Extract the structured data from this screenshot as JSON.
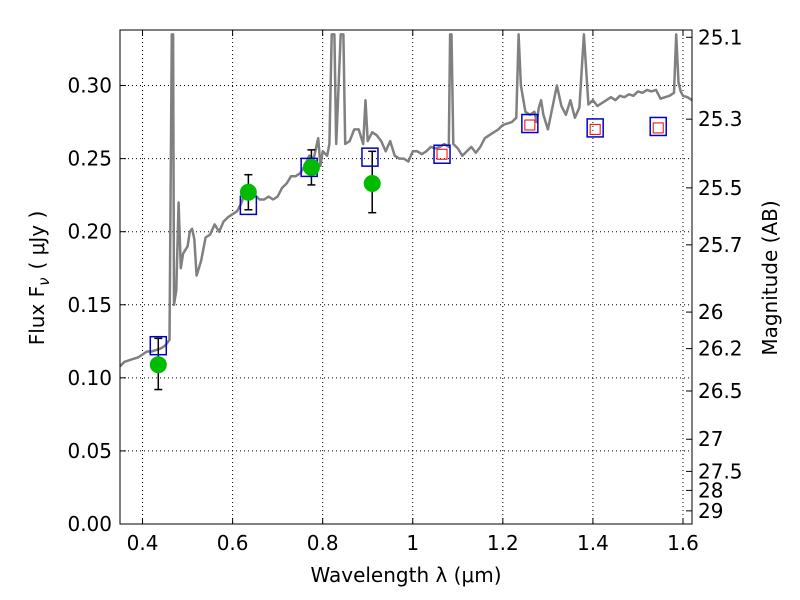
{
  "chart_data": {
    "type": "scatter",
    "xlabel": "Wavelength  λ (μm)",
    "ylabel": "Flux  F",
    "ylabel_subscript": "ν",
    "ylabel_unit": "( μJy )",
    "y2label": "Magnitude (AB)",
    "xlim": [
      0.35,
      1.62
    ],
    "ylim": [
      0.0,
      0.338
    ],
    "grid": true,
    "x_ticks": [
      0.4,
      0.6,
      0.8,
      1.0,
      1.2,
      1.4,
      1.6
    ],
    "x_tick_labels": [
      "0.4",
      "0.6",
      "0.8",
      "1",
      "1.2",
      "1.4",
      "1.6"
    ],
    "y_ticks": [
      0.0,
      0.05,
      0.1,
      0.15,
      0.2,
      0.25,
      0.3
    ],
    "y_tick_labels": [
      "0.00",
      "0.05",
      "0.10",
      "0.15",
      "0.20",
      "0.25",
      "0.30"
    ],
    "mag_ticks": [
      {
        "label": "25.1",
        "flux": 0.333
      },
      {
        "label": "25.3",
        "flux": 0.277
      },
      {
        "label": "25.5",
        "flux": 0.23
      },
      {
        "label": "25.7",
        "flux": 0.191
      },
      {
        "label": "26",
        "flux": 0.145
      },
      {
        "label": "26.2",
        "flux": 0.12
      },
      {
        "label": "26.5",
        "flux": 0.091
      },
      {
        "label": "27",
        "flux": 0.058
      },
      {
        "label": "27.5",
        "flux": 0.036
      },
      {
        "label": "28",
        "flux": 0.023
      },
      {
        "label": "29",
        "flux": 0.009
      }
    ],
    "series": [
      {
        "kind": "line",
        "color": "#808080",
        "points": [
          [
            0.35,
            0.108
          ],
          [
            0.36,
            0.111
          ],
          [
            0.37,
            0.112
          ],
          [
            0.38,
            0.113
          ],
          [
            0.39,
            0.114
          ],
          [
            0.4,
            0.116
          ],
          [
            0.41,
            0.118
          ],
          [
            0.42,
            0.118
          ],
          [
            0.43,
            0.119
          ],
          [
            0.44,
            0.12
          ],
          [
            0.45,
            0.122
          ],
          [
            0.455,
            0.124
          ],
          [
            0.46,
            0.126
          ],
          [
            0.465,
            0.335
          ],
          [
            0.468,
            0.335
          ],
          [
            0.47,
            0.15
          ],
          [
            0.475,
            0.16
          ],
          [
            0.48,
            0.22
          ],
          [
            0.485,
            0.175
          ],
          [
            0.49,
            0.185
          ],
          [
            0.5,
            0.19
          ],
          [
            0.505,
            0.2
          ],
          [
            0.51,
            0.202
          ],
          [
            0.515,
            0.195
          ],
          [
            0.52,
            0.17
          ],
          [
            0.53,
            0.18
          ],
          [
            0.54,
            0.196
          ],
          [
            0.55,
            0.198
          ],
          [
            0.56,
            0.205
          ],
          [
            0.57,
            0.2
          ],
          [
            0.58,
            0.207
          ],
          [
            0.59,
            0.21
          ],
          [
            0.6,
            0.212
          ],
          [
            0.61,
            0.214
          ],
          [
            0.62,
            0.22
          ],
          [
            0.63,
            0.23
          ],
          [
            0.64,
            0.232
          ],
          [
            0.65,
            0.225
          ],
          [
            0.66,
            0.222
          ],
          [
            0.67,
            0.222
          ],
          [
            0.68,
            0.224
          ],
          [
            0.69,
            0.222
          ],
          [
            0.7,
            0.224
          ],
          [
            0.71,
            0.23
          ],
          [
            0.72,
            0.233
          ],
          [
            0.73,
            0.238
          ],
          [
            0.74,
            0.238
          ],
          [
            0.75,
            0.24
          ],
          [
            0.76,
            0.245
          ],
          [
            0.77,
            0.252
          ],
          [
            0.78,
            0.25
          ],
          [
            0.79,
            0.264
          ],
          [
            0.795,
            0.245
          ],
          [
            0.8,
            0.255
          ],
          [
            0.81,
            0.252
          ],
          [
            0.815,
            0.26
          ],
          [
            0.82,
            0.335
          ],
          [
            0.826,
            0.335
          ],
          [
            0.83,
            0.26
          ],
          [
            0.84,
            0.335
          ],
          [
            0.846,
            0.335
          ],
          [
            0.85,
            0.26
          ],
          [
            0.86,
            0.262
          ],
          [
            0.87,
            0.27
          ],
          [
            0.88,
            0.27
          ],
          [
            0.89,
            0.26
          ],
          [
            0.895,
            0.29
          ],
          [
            0.9,
            0.262
          ],
          [
            0.91,
            0.268
          ],
          [
            0.92,
            0.266
          ],
          [
            0.93,
            0.262
          ],
          [
            0.94,
            0.255
          ],
          [
            0.95,
            0.262
          ],
          [
            0.96,
            0.252
          ],
          [
            0.97,
            0.25
          ],
          [
            0.98,
            0.25
          ],
          [
            0.99,
            0.248
          ],
          [
            1.0,
            0.255
          ],
          [
            1.01,
            0.255
          ],
          [
            1.02,
            0.253
          ],
          [
            1.03,
            0.255
          ],
          [
            1.04,
            0.258
          ],
          [
            1.05,
            0.257
          ],
          [
            1.06,
            0.258
          ],
          [
            1.07,
            0.26
          ],
          [
            1.08,
            0.258
          ],
          [
            1.083,
            0.335
          ],
          [
            1.086,
            0.335
          ],
          [
            1.09,
            0.26
          ],
          [
            1.1,
            0.257
          ],
          [
            1.11,
            0.252
          ],
          [
            1.12,
            0.255
          ],
          [
            1.13,
            0.258
          ],
          [
            1.14,
            0.254
          ],
          [
            1.15,
            0.258
          ],
          [
            1.16,
            0.264
          ],
          [
            1.17,
            0.266
          ],
          [
            1.18,
            0.268
          ],
          [
            1.19,
            0.27
          ],
          [
            1.2,
            0.273
          ],
          [
            1.21,
            0.274
          ],
          [
            1.22,
            0.275
          ],
          [
            1.23,
            0.278
          ],
          [
            1.235,
            0.335
          ],
          [
            1.24,
            0.3
          ],
          [
            1.25,
            0.282
          ],
          [
            1.26,
            0.28
          ],
          [
            1.27,
            0.282
          ],
          [
            1.275,
            0.275
          ],
          [
            1.28,
            0.285
          ],
          [
            1.285,
            0.29
          ],
          [
            1.29,
            0.28
          ],
          [
            1.3,
            0.27
          ],
          [
            1.31,
            0.285
          ],
          [
            1.32,
            0.3
          ],
          [
            1.33,
            0.286
          ],
          [
            1.34,
            0.28
          ],
          [
            1.35,
            0.29
          ],
          [
            1.36,
            0.278
          ],
          [
            1.37,
            0.285
          ],
          [
            1.38,
            0.335
          ],
          [
            1.39,
            0.287
          ],
          [
            1.4,
            0.29
          ],
          [
            1.41,
            0.286
          ],
          [
            1.42,
            0.288
          ],
          [
            1.43,
            0.29
          ],
          [
            1.44,
            0.292
          ],
          [
            1.45,
            0.29
          ],
          [
            1.46,
            0.293
          ],
          [
            1.47,
            0.292
          ],
          [
            1.48,
            0.294
          ],
          [
            1.49,
            0.293
          ],
          [
            1.5,
            0.296
          ],
          [
            1.51,
            0.295
          ],
          [
            1.52,
            0.297
          ],
          [
            1.53,
            0.296
          ],
          [
            1.54,
            0.297
          ],
          [
            1.55,
            0.291
          ],
          [
            1.56,
            0.292
          ],
          [
            1.57,
            0.293
          ],
          [
            1.58,
            0.295
          ],
          [
            1.585,
            0.335
          ],
          [
            1.59,
            0.302
          ],
          [
            1.595,
            0.296
          ],
          [
            1.6,
            0.293
          ],
          [
            1.61,
            0.292
          ],
          [
            1.62,
            0.29
          ]
        ]
      },
      {
        "kind": "observed",
        "color": "#00bb00",
        "points": [
          {
            "x": 0.435,
            "y": 0.109,
            "lo": 0.092,
            "hi": 0.127
          },
          {
            "x": 0.635,
            "y": 0.227,
            "lo": 0.215,
            "hi": 0.239
          },
          {
            "x": 0.775,
            "y": 0.244,
            "lo": 0.232,
            "hi": 0.256
          },
          {
            "x": 0.91,
            "y": 0.233,
            "lo": 0.213,
            "hi": 0.255
          }
        ]
      },
      {
        "kind": "model_boxes",
        "color": "#0000cc",
        "points": [
          [
            0.435,
            0.122
          ],
          [
            0.635,
            0.218
          ],
          [
            0.77,
            0.244
          ],
          [
            0.905,
            0.251
          ],
          [
            1.065,
            0.253
          ],
          [
            1.26,
            0.274
          ],
          [
            1.405,
            0.271
          ],
          [
            1.545,
            0.272
          ]
        ]
      },
      {
        "kind": "model_boxes_small",
        "color": "#ee0000",
        "points": [
          [
            1.065,
            0.253
          ],
          [
            1.26,
            0.273
          ],
          [
            1.405,
            0.27
          ],
          [
            1.545,
            0.271
          ]
        ]
      }
    ]
  }
}
